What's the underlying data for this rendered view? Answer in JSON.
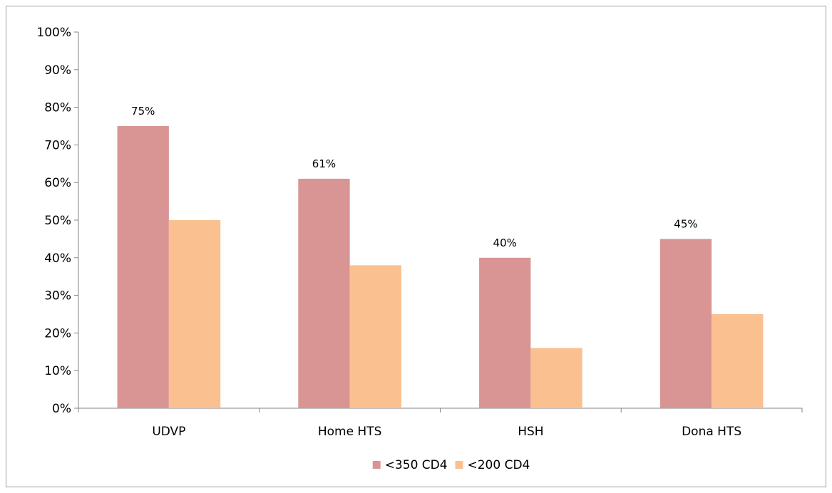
{
  "chart_data": {
    "type": "bar",
    "categories": [
      "UDVP",
      "Home HTS",
      "HSH",
      "Dona HTS"
    ],
    "series": [
      {
        "name": "<350 CD4",
        "color": "#d99594",
        "values": [
          75,
          61,
          40,
          45
        ],
        "labels": [
          "75%",
          "61%",
          "40%",
          "45%"
        ]
      },
      {
        "name": "<200 CD4",
        "color": "#fac090",
        "values": [
          50,
          38,
          16,
          25
        ]
      }
    ],
    "ylim": [
      0,
      100
    ],
    "y_ticks": [
      "0%",
      "10%",
      "20%",
      "30%",
      "40%",
      "50%",
      "60%",
      "70%",
      "80%",
      "90%",
      "100%"
    ],
    "xlabel": "",
    "ylabel": "",
    "grid": false,
    "legend_position": "bottom"
  }
}
